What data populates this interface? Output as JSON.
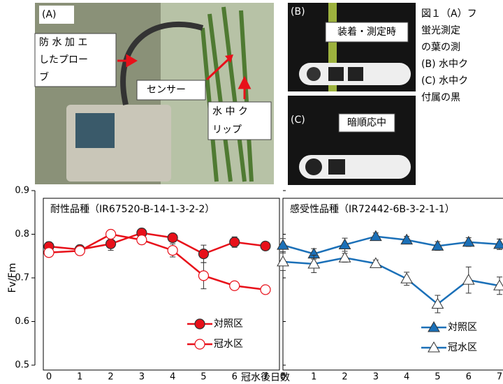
{
  "figure": {
    "photo_a": {
      "label": "(A)",
      "probe": [
        "防 水 加 エ",
        "したプロー",
        "ブ"
      ],
      "sensor": "センサー",
      "clip": [
        "水 中 ク",
        "リップ"
      ]
    },
    "photo_b": {
      "label": "(B)",
      "caption": "装着・測定時"
    },
    "photo_c": {
      "label": "(C)",
      "caption": "暗順応中"
    },
    "caption": [
      "図１（A）フ",
      "蛍光測定",
      "の葉の測",
      "(B) 水中ク",
      "(C) 水中ク",
      "付属の黒"
    ]
  },
  "chart_data": [
    {
      "type": "line",
      "title": "耐性品種（IR67520-B-14-1-3-2-2）",
      "xlabel": "冠水後日数",
      "ylabel": "Fv/Fm",
      "x": [
        0,
        1,
        2,
        3,
        4,
        5,
        6,
        7
      ],
      "xlim": [
        0,
        7
      ],
      "xticks": [
        0,
        1,
        2,
        3,
        4,
        5,
        6,
        7
      ],
      "ylim": [
        0.5,
        0.9
      ],
      "yticks": [
        0.5,
        0.6,
        0.7,
        0.8,
        0.9
      ],
      "series": [
        {
          "name": "対照区",
          "color": "#e8101a",
          "marker": "circle",
          "filled": true,
          "values": [
            0.772,
            0.765,
            0.778,
            0.803,
            0.792,
            0.755,
            0.782,
            0.773
          ],
          "errors": [
            0.01,
            0.01,
            0.015,
            0.01,
            0.008,
            0.02,
            0.012,
            0.005
          ]
        },
        {
          "name": "冠水区",
          "color": "#e8101a",
          "marker": "circle",
          "filled": false,
          "values": [
            0.758,
            0.762,
            0.8,
            0.787,
            0.763,
            0.705,
            0.682,
            0.673
          ],
          "errors": [
            0.01,
            0.01,
            0.008,
            0.01,
            0.015,
            0.03,
            0.005,
            0.005
          ]
        }
      ]
    },
    {
      "type": "line",
      "title": "感受性品種（IR72442-6B-3-2-1-1）",
      "x": [
        0,
        1,
        2,
        3,
        4,
        5,
        6,
        7
      ],
      "xlim": [
        0,
        7
      ],
      "xticks": [
        0,
        1,
        2,
        3,
        4,
        5,
        6,
        7
      ],
      "ylim": [
        0.5,
        0.9
      ],
      "yticks": [
        0.5,
        0.6,
        0.7,
        0.8,
        0.9
      ],
      "series": [
        {
          "name": "対照区",
          "color": "#1b70b8",
          "marker": "triangle",
          "filled": true,
          "values": [
            0.775,
            0.755,
            0.776,
            0.795,
            0.787,
            0.773,
            0.782,
            0.777
          ],
          "errors": [
            0.015,
            0.012,
            0.015,
            0.008,
            0.008,
            0.01,
            0.01,
            0.012
          ]
        },
        {
          "name": "冠水区",
          "color": "#1b70b8",
          "marker": "triangle",
          "filled": false,
          "values": [
            0.737,
            0.732,
            0.746,
            0.733,
            0.698,
            0.64,
            0.695,
            0.682
          ],
          "errors": [
            0.02,
            0.02,
            0.01,
            0.008,
            0.015,
            0.02,
            0.03,
            0.02
          ]
        }
      ]
    }
  ]
}
